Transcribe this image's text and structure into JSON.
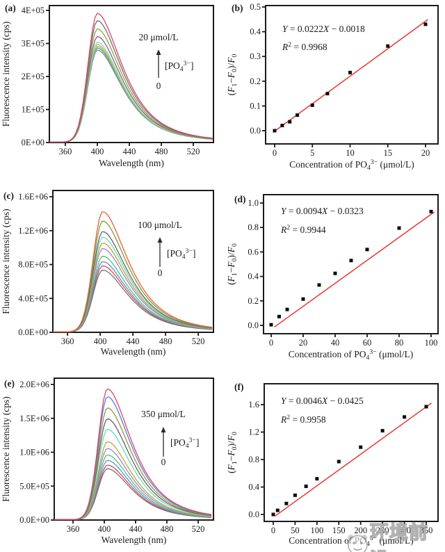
{
  "watermark": {
    "text": "环境前沿"
  },
  "chart_data": [
    {
      "id": "a",
      "type": "line",
      "panel_label": "(a)",
      "xlabel": "Wavelength (nm)",
      "ylabel": "Fluorescence intensity (cps)",
      "x_tick_values": [
        360,
        400,
        440,
        480,
        520
      ],
      "x_tick_labels": [
        "360",
        "400",
        "440",
        "480",
        "520"
      ],
      "y_tick_values": [
        0,
        100000,
        200000,
        300000,
        400000
      ],
      "y_tick_labels": [
        "0E+00",
        "1E+05",
        "2E+05",
        "3E+05",
        "4E+05"
      ],
      "x_range": [
        340,
        545
      ],
      "y_range": [
        0,
        400000
      ],
      "peak_wavelength": 400,
      "annotation": {
        "max_label": "20 μmol/L",
        "species": "[PO_{4}^{3−}]",
        "min_label": "0"
      },
      "series": [
        {
          "color": "#d8446b",
          "peak": 390000
        },
        {
          "color": "#6e6e6e",
          "peak": 368000
        },
        {
          "color": "#95a238",
          "peak": 343000
        },
        {
          "color": "#7b5fa0",
          "peak": 320000
        },
        {
          "color": "#a9d795",
          "peak": 303000
        },
        {
          "color": "#5cdcab",
          "peak": 296000
        },
        {
          "color": "#e6953e",
          "peak": 290000
        },
        {
          "color": "#56b35c",
          "peak": 285000
        },
        {
          "color": "#6c87dd",
          "peak": 279000
        }
      ]
    },
    {
      "id": "b",
      "type": "scatter",
      "panel_label": "(b)",
      "xlabel": "Concentration of PO_{4}^{3−} (μmol/L)",
      "ylabel": "(*F*_{1}−*F*_{0})/*F*_{0}",
      "equation": "*Y* = 0.0222*X* − 0.0018",
      "r_squared": "*R*^{2} = 0.9968",
      "x_tick_values": [
        0,
        5,
        10,
        15,
        20
      ],
      "x_tick_labels": [
        "0",
        "5",
        "10",
        "15",
        "20"
      ],
      "y_tick_values": [
        0,
        0.1,
        0.2,
        0.3,
        0.4,
        0.5
      ],
      "y_tick_labels": [
        "0.0",
        "0.1",
        "0.2",
        "0.3",
        "0.4",
        "0.5"
      ],
      "fit": {
        "slope": 0.0222,
        "intercept": -0.0018,
        "color": "#e8423e",
        "x_start": 0.2,
        "x_end": 20.3
      },
      "points": [
        [
          0,
          0.0
        ],
        [
          1,
          0.021
        ],
        [
          2,
          0.036
        ],
        [
          3,
          0.063
        ],
        [
          5,
          0.103
        ],
        [
          7,
          0.15
        ],
        [
          10,
          0.235
        ],
        [
          15,
          0.342
        ],
        [
          20,
          0.43
        ]
      ]
    },
    {
      "id": "c",
      "type": "line",
      "panel_label": "(c)",
      "xlabel": "Wavelength (nm)",
      "ylabel": "Fluorescence intensity (cps)",
      "x_tick_values": [
        360,
        400,
        440,
        480,
        520
      ],
      "x_tick_labels": [
        "360",
        "400",
        "440",
        "480",
        "520"
      ],
      "y_tick_values": [
        0,
        400000,
        800000,
        1200000,
        1600000
      ],
      "y_tick_labels": [
        "0.0E+00",
        "4.0E+05",
        "8.0E+05",
        "1.2E+06",
        "1.6E+06"
      ],
      "x_range": [
        342,
        538
      ],
      "y_range": [
        0,
        1600000
      ],
      "peak_wavelength": 403,
      "annotation": {
        "max_label": "100 μmol/L",
        "species": "[PO_{4}^{3−}]",
        "min_label": "0"
      },
      "series": [
        {
          "color": "#e2612f",
          "peak": 1420000
        },
        {
          "color": "#7f9b35",
          "peak": 1310000
        },
        {
          "color": "#6d5b7c",
          "peak": 1185000
        },
        {
          "color": "#62dfae",
          "peak": 1120000
        },
        {
          "color": "#bfa032",
          "peak": 1050000
        },
        {
          "color": "#9186e6",
          "peak": 985000
        },
        {
          "color": "#57c25e",
          "peak": 895000
        },
        {
          "color": "#5c8ae0",
          "peak": 830000
        },
        {
          "color": "#df4b4b",
          "peak": 780000
        },
        {
          "color": "#737373",
          "peak": 730000
        }
      ]
    },
    {
      "id": "d",
      "type": "scatter",
      "panel_label": "(d)",
      "xlabel": "Concentration of PO_{4}^{3−} (μmol/L)",
      "ylabel": "(*F*_{1}−*F*_{0})/*F*_{0}",
      "equation": "*Y* = 0.0094*X* − 0.0323",
      "r_squared": "*R*^{2} = 0.9944",
      "x_tick_values": [
        0,
        20,
        40,
        60,
        80,
        100
      ],
      "x_tick_labels": [
        "0",
        "20",
        "40",
        "60",
        "80",
        "100"
      ],
      "y_tick_values": [
        0,
        0.2,
        0.4,
        0.6,
        0.8,
        1.0
      ],
      "y_tick_labels": [
        "0.0",
        "0.2",
        "0.4",
        "0.6",
        "0.8",
        "1.0"
      ],
      "fit": {
        "slope": 0.0094,
        "intercept": -0.0323,
        "color": "#e8423e",
        "x_start": 2,
        "x_end": 102
      },
      "points": [
        [
          0,
          0.005
        ],
        [
          5,
          0.072
        ],
        [
          10,
          0.13
        ],
        [
          20,
          0.215
        ],
        [
          30,
          0.33
        ],
        [
          40,
          0.425
        ],
        [
          50,
          0.53
        ],
        [
          60,
          0.62
        ],
        [
          80,
          0.795
        ],
        [
          100,
          0.93
        ]
      ]
    },
    {
      "id": "e",
      "type": "line",
      "panel_label": "(e)",
      "xlabel": "Wavelength (nm)",
      "ylabel": "Fluorescence intensity (cps)",
      "x_tick_values": [
        360,
        400,
        440,
        480,
        520
      ],
      "x_tick_labels": [
        "360",
        "400",
        "440",
        "480",
        "520"
      ],
      "y_tick_values": [
        0,
        500000,
        1000000,
        1500000,
        2000000
      ],
      "y_tick_labels": [
        "0.0E+00",
        "5.0E+05",
        "1.0E+06",
        "1.5E+06",
        "2.0E+06"
      ],
      "x_range": [
        336,
        539
      ],
      "y_range": [
        0,
        2000000
      ],
      "peak_wavelength": 404,
      "annotation": {
        "max_label": "350 μmol/L",
        "species": "[PO_{4}^{3−}]",
        "min_label": "0"
      },
      "series": [
        {
          "color": "#e3405f",
          "peak": 1930000
        },
        {
          "color": "#4c7ee6",
          "peak": 1815000
        },
        {
          "color": "#8d9c2e",
          "peak": 1650000
        },
        {
          "color": "#6e5472",
          "peak": 1490000
        },
        {
          "color": "#58e2ae",
          "peak": 1335000
        },
        {
          "color": "#c4a233",
          "peak": 1150000
        },
        {
          "color": "#9486e6",
          "peak": 1050000
        },
        {
          "color": "#57c562",
          "peak": 955000
        },
        {
          "color": "#5e8ee6",
          "peak": 875000
        },
        {
          "color": "#df4848",
          "peak": 805000
        },
        {
          "color": "#747474",
          "peak": 752000
        }
      ]
    },
    {
      "id": "f",
      "type": "scatter",
      "panel_label": "(f)",
      "xlabel": "Concentration of PO_{4}^{3−} (μmol/L)",
      "ylabel": "(*F*_{1}−*F*_{0})/*F*_{0}",
      "equation": "*Y* = 0.0046*X* − 0.0425",
      "r_squared": "*R*^{2} = 0.9958",
      "x_tick_values": [
        0,
        50,
        100,
        150,
        200,
        250,
        300,
        350
      ],
      "x_tick_labels": [
        "0",
        "50",
        "100",
        "150",
        "200",
        "250",
        "300",
        "350"
      ],
      "y_tick_values": [
        0,
        0.4,
        0.8,
        1.2,
        1.6
      ],
      "y_tick_labels": [
        "0.0",
        "0.4",
        "0.8",
        "1.2",
        "1.6"
      ],
      "fit": {
        "slope": 0.0046,
        "intercept": -0.0425,
        "color": "#e8423e",
        "x_start": 4,
        "x_end": 362
      },
      "points": [
        [
          0,
          0.0
        ],
        [
          10,
          0.06
        ],
        [
          30,
          0.16
        ],
        [
          50,
          0.28
        ],
        [
          75,
          0.41
        ],
        [
          100,
          0.52
        ],
        [
          150,
          0.77
        ],
        [
          200,
          0.98
        ],
        [
          250,
          1.22
        ],
        [
          300,
          1.42
        ],
        [
          350,
          1.57
        ]
      ]
    }
  ]
}
